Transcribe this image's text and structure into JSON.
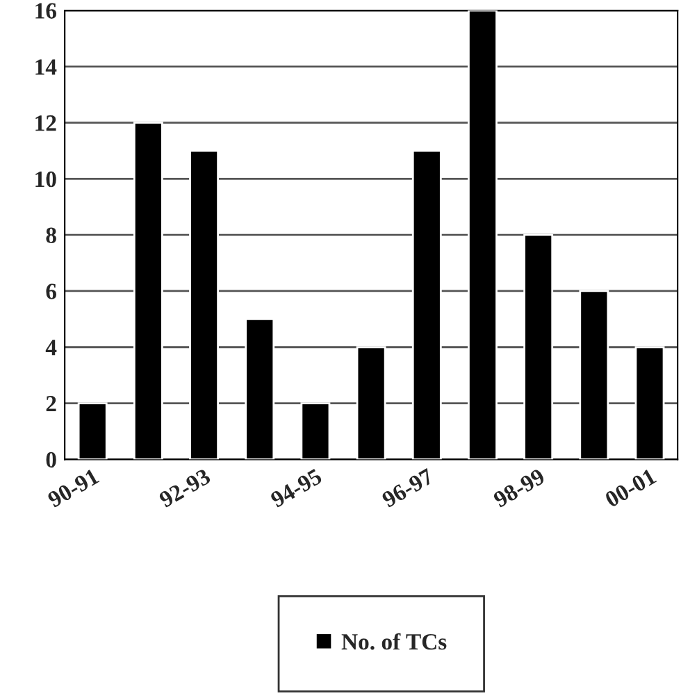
{
  "chart_data": {
    "type": "bar",
    "categories": [
      "90-91",
      null,
      "92-93",
      null,
      "94-95",
      null,
      "96-97",
      null,
      "98-99",
      null,
      "00-01"
    ],
    "series": [
      {
        "name": "No. of TCs",
        "color": "#000000",
        "values": [
          2,
          12,
          11,
          5,
          2,
          4,
          11,
          16,
          8,
          6,
          4
        ]
      }
    ],
    "ylim": [
      0,
      16
    ],
    "yticks": [
      0,
      2,
      4,
      6,
      8,
      10,
      12,
      14,
      16
    ],
    "grid": "y",
    "legend": "bottom"
  }
}
